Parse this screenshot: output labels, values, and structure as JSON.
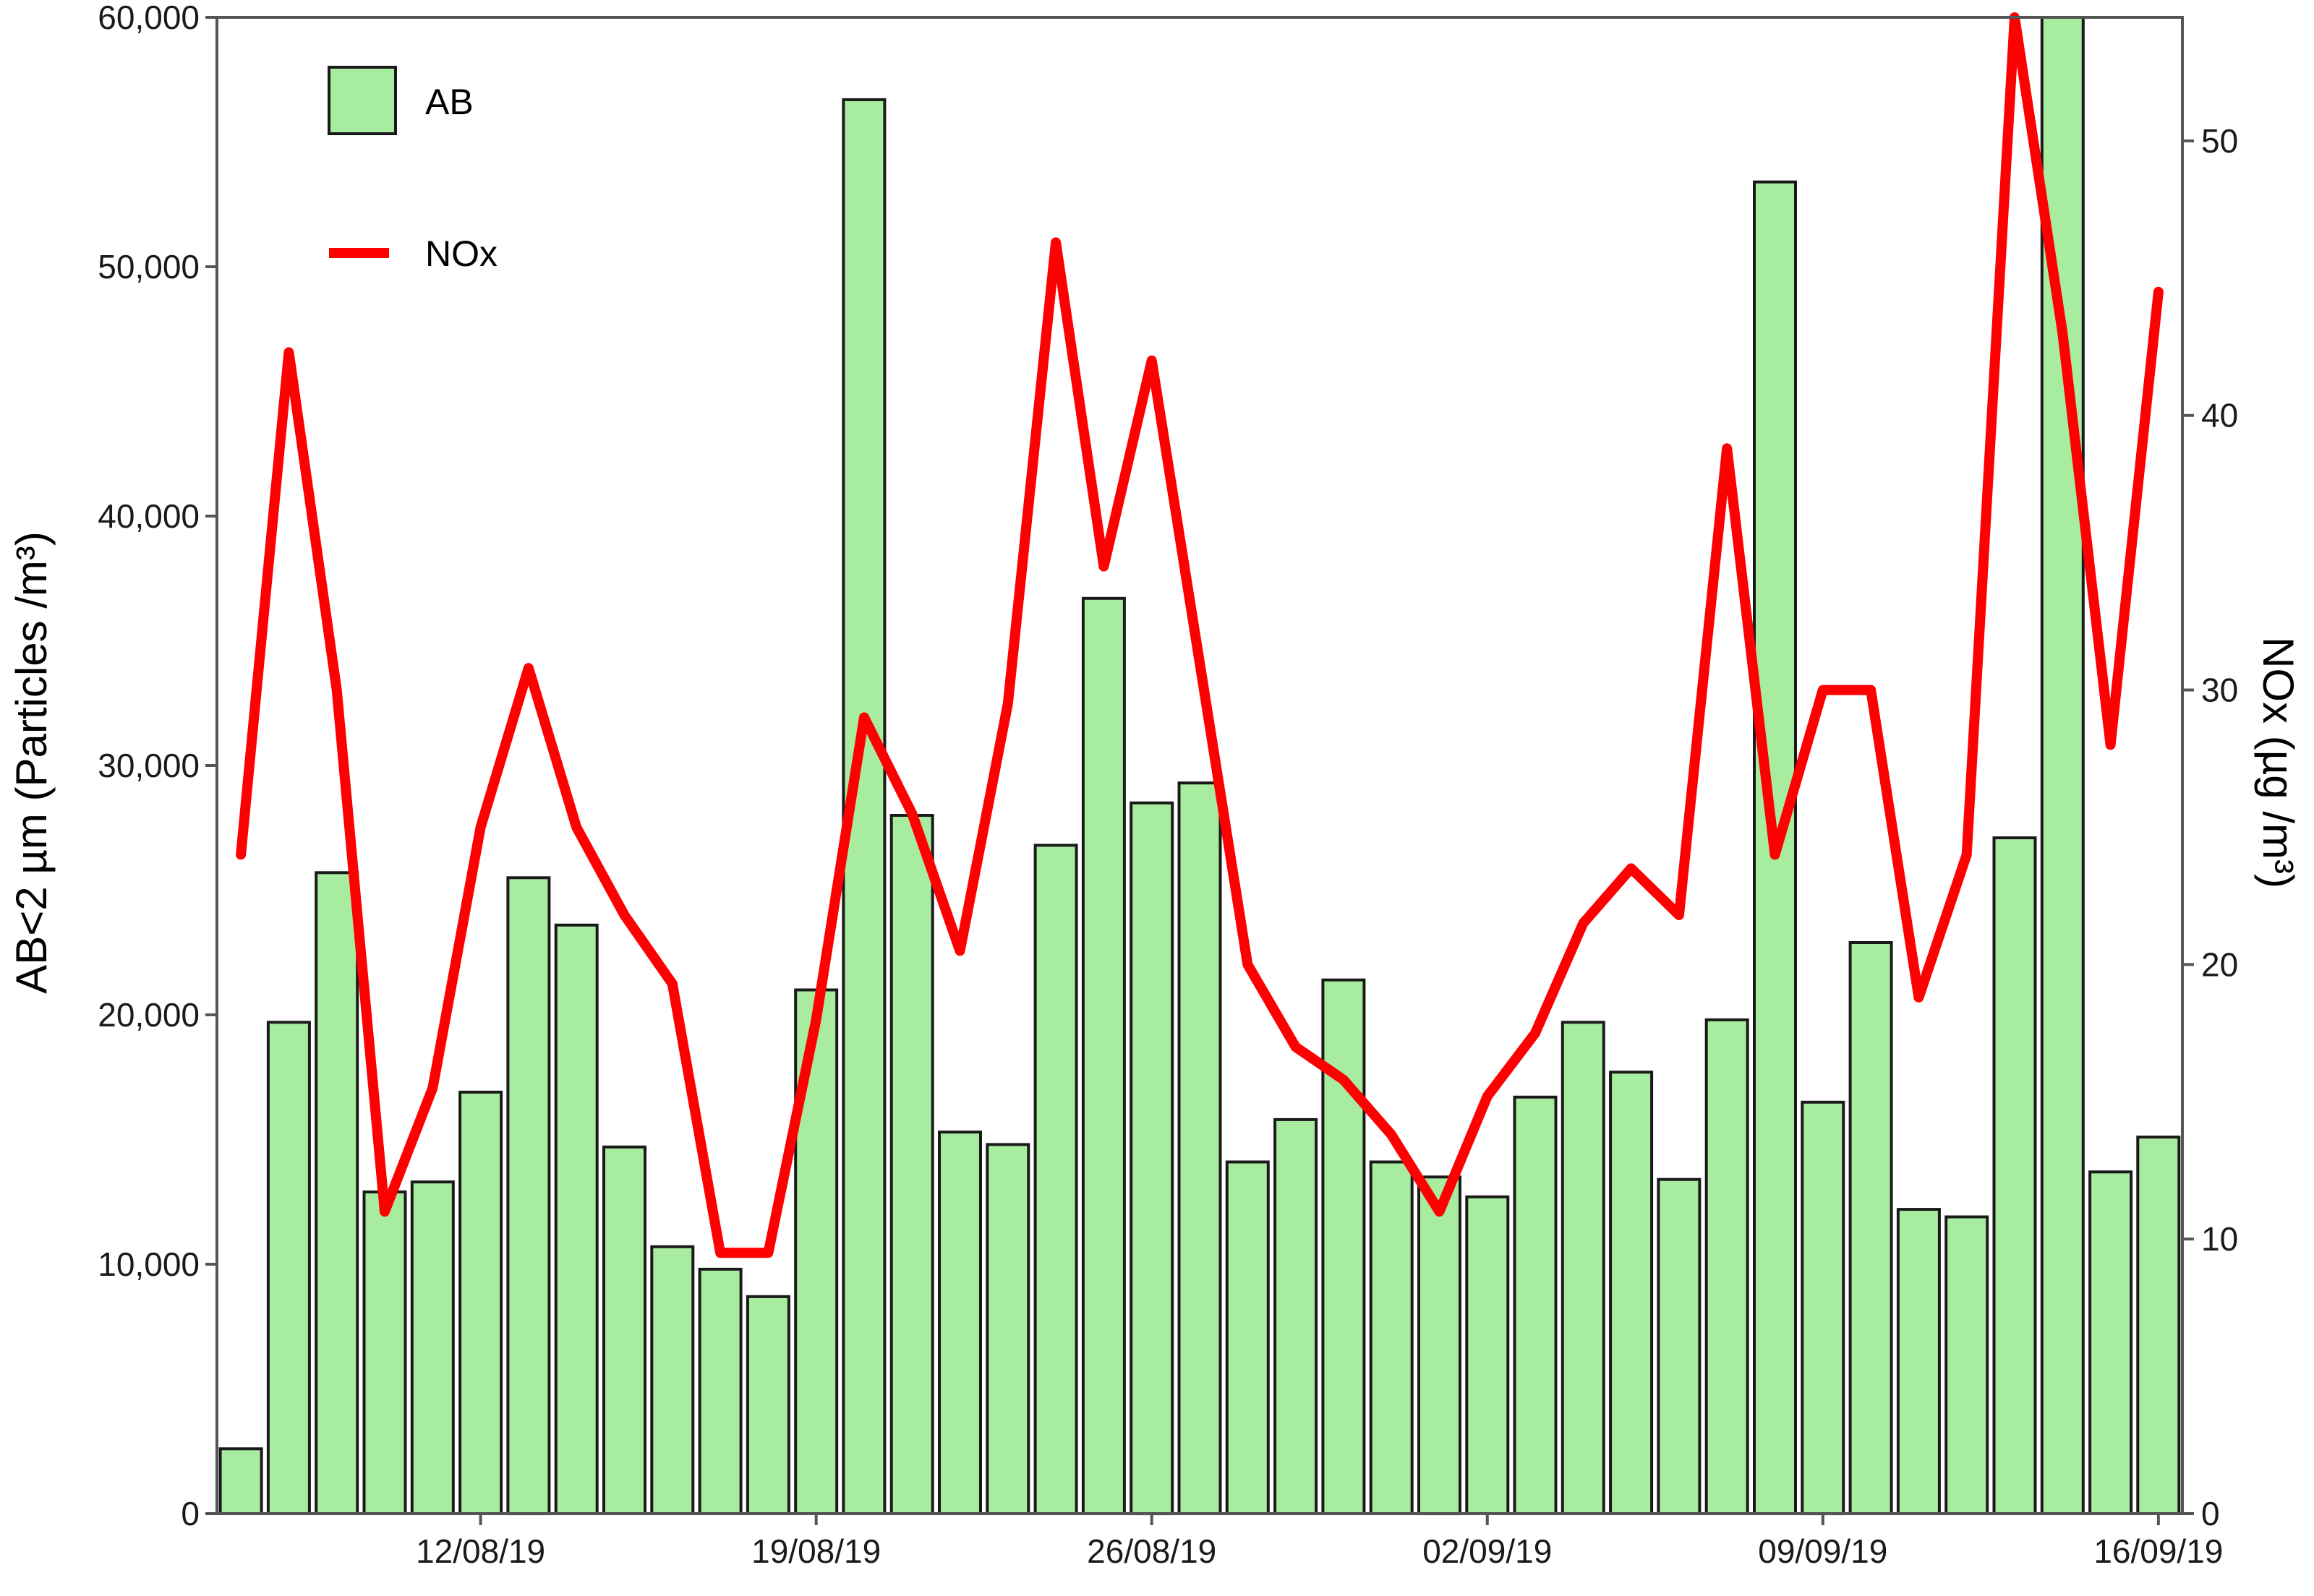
{
  "chart_data": {
    "type": "bar+line",
    "legend_position": "top-left",
    "grid": false,
    "x": {
      "tick_labels": [
        "12/08/19",
        "19/08/19",
        "26/08/19",
        "02/09/19",
        "09/09/19",
        "16/09/19"
      ],
      "tick_dates": [
        "2019-08-12",
        "2019-08-19",
        "2019-08-26",
        "2019-09-02",
        "2019-09-09",
        "2019-09-16"
      ],
      "dates": [
        "2019-08-07",
        "2019-08-08",
        "2019-08-09",
        "2019-08-10",
        "2019-08-11",
        "2019-08-12",
        "2019-08-13",
        "2019-08-14",
        "2019-08-15",
        "2019-08-16",
        "2019-08-17",
        "2019-08-18",
        "2019-08-19",
        "2019-08-20",
        "2019-08-21",
        "2019-08-22",
        "2019-08-23",
        "2019-08-24",
        "2019-08-25",
        "2019-08-26",
        "2019-08-27",
        "2019-08-28",
        "2019-08-29",
        "2019-08-30",
        "2019-08-31",
        "2019-09-01",
        "2019-09-02",
        "2019-09-03",
        "2019-09-04",
        "2019-09-05",
        "2019-09-06",
        "2019-09-07",
        "2019-09-08",
        "2019-09-09",
        "2019-09-10",
        "2019-09-11",
        "2019-09-12",
        "2019-09-13",
        "2019-09-14",
        "2019-09-15",
        "2019-09-16"
      ]
    },
    "y_left": {
      "label": "AB<2 µm (Particles /m³)",
      "ylim": [
        0,
        60000
      ],
      "ticks": [
        0,
        10000,
        20000,
        30000,
        40000,
        50000,
        60000
      ],
      "tick_labels": [
        "0",
        "10,000",
        "20,000",
        "30,000",
        "40,000",
        "50,000",
        "60,000"
      ]
    },
    "y_right": {
      "label": "NOx (µg /m³)",
      "ylim": [
        0,
        54.5
      ],
      "ticks": [
        0,
        10,
        20,
        30,
        40,
        50
      ],
      "tick_labels": [
        "0",
        "10",
        "20",
        "30",
        "40",
        "50"
      ]
    },
    "series": [
      {
        "name": "AB",
        "kind": "bar",
        "axis": "left",
        "color": "#a8eca0",
        "edge_color": "#1a1a1a",
        "values": [
          2600,
          19700,
          25700,
          12900,
          13300,
          16900,
          25500,
          23600,
          14700,
          10700,
          9800,
          8700,
          21000,
          56700,
          28000,
          15300,
          14800,
          26800,
          36700,
          28500,
          29300,
          14100,
          15800,
          21400,
          14100,
          13500,
          12700,
          16700,
          19700,
          17700,
          13400,
          19800,
          53400,
          16500,
          22900,
          12200,
          11900,
          27100,
          60000,
          13700,
          15100
        ]
      },
      {
        "name": "NOx",
        "kind": "line",
        "axis": "right",
        "color": "#ff0000",
        "values": [
          24.0,
          42.3,
          30.0,
          11.0,
          15.5,
          25.0,
          30.8,
          25.0,
          21.8,
          19.3,
          9.5,
          9.5,
          18.0,
          29.0,
          25.5,
          20.5,
          29.5,
          46.3,
          34.5,
          42.0,
          31.0,
          20.0,
          17.0,
          15.8,
          13.8,
          11.0,
          15.2,
          17.5,
          21.5,
          23.5,
          21.8,
          38.8,
          24.0,
          30.0,
          30.0,
          18.8,
          24.0,
          55.0,
          43.0,
          28.0,
          44.5
        ]
      }
    ]
  }
}
